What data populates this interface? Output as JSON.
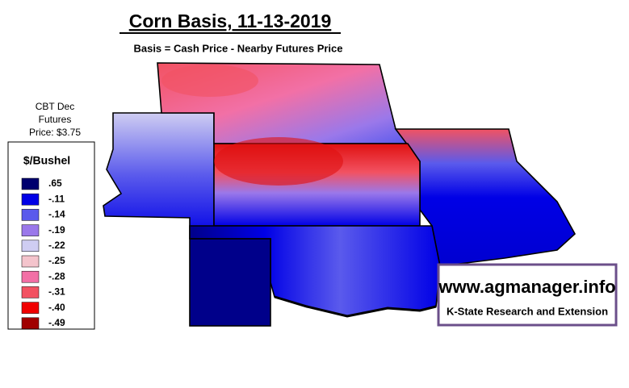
{
  "header": {
    "title": "Corn Basis, 11-13-2019",
    "subtitle": "Basis = Cash Price - Nearby Futures Price"
  },
  "futures_note": [
    "CBT Dec",
    "Futures",
    "Price: $3.75"
  ],
  "legend": {
    "title": "$/Bushel",
    "items": [
      {
        "label": ".65",
        "color": "#00006e"
      },
      {
        "label": "-.11",
        "color": "#0000e6"
      },
      {
        "label": "-.14",
        "color": "#5a5aec"
      },
      {
        "label": "-.19",
        "color": "#9a78ea"
      },
      {
        "label": "-.22",
        "color": "#cfcdf2"
      },
      {
        "label": "-.25",
        "color": "#f4c4cc"
      },
      {
        "label": "-.28",
        "color": "#f270a6"
      },
      {
        "label": "-.31",
        "color": "#f25262"
      },
      {
        "label": "-.40",
        "color": "#f00000"
      },
      {
        "label": "-.49",
        "color": "#a00000"
      }
    ]
  },
  "logo": {
    "url": "www.agmanager.info",
    "org": "K-State Research and Extension"
  }
}
